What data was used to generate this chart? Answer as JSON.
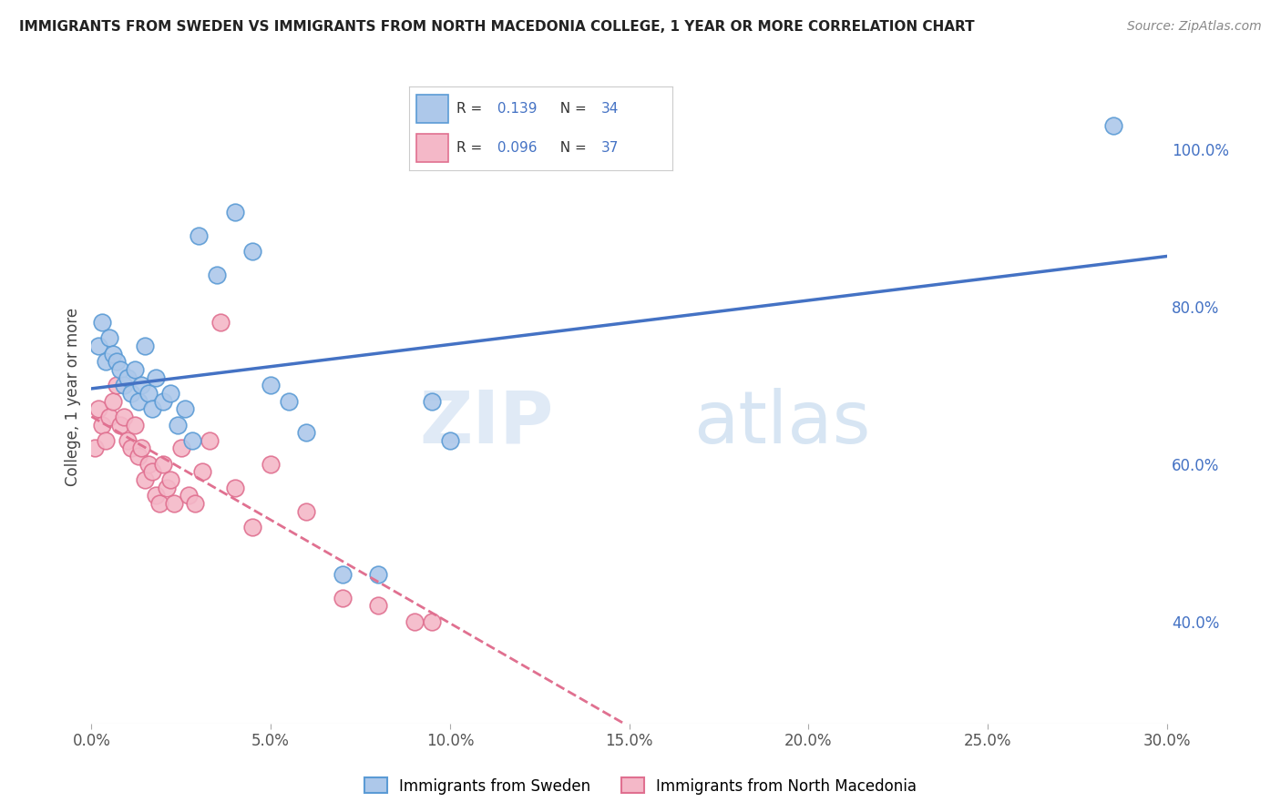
{
  "title": "IMMIGRANTS FROM SWEDEN VS IMMIGRANTS FROM NORTH MACEDONIA COLLEGE, 1 YEAR OR MORE CORRELATION CHART",
  "source": "Source: ZipAtlas.com",
  "ylabel": "College, 1 year or more",
  "x_tick_labels": [
    "0.0%",
    "5.0%",
    "10.0%",
    "15.0%",
    "20.0%",
    "25.0%",
    "30.0%"
  ],
  "x_tick_values": [
    0.0,
    5.0,
    10.0,
    15.0,
    20.0,
    25.0,
    30.0
  ],
  "y_tick_labels": [
    "40.0%",
    "60.0%",
    "80.0%",
    "100.0%"
  ],
  "y_tick_values": [
    40.0,
    60.0,
    80.0,
    100.0
  ],
  "xlim": [
    0.0,
    30.0
  ],
  "ylim": [
    27.0,
    110.0
  ],
  "legend_sweden_label": "Immigrants from Sweden",
  "legend_macedonia_label": "Immigrants from North Macedonia",
  "R_sweden": 0.139,
  "N_sweden": 34,
  "R_macedonia": 0.096,
  "N_macedonia": 37,
  "sweden_color": "#adc8ea",
  "sweden_edge_color": "#5b9bd5",
  "macedonia_color": "#f4b8c8",
  "macedonia_edge_color": "#e07090",
  "trend_sweden_color": "#4472c4",
  "trend_macedonia_color": "#e07090",
  "watermark_zip": "ZIP",
  "watermark_atlas": "atlas",
  "sweden_x": [
    0.2,
    0.3,
    0.4,
    0.5,
    0.6,
    0.7,
    0.8,
    0.9,
    1.0,
    1.1,
    1.2,
    1.3,
    1.4,
    1.5,
    1.6,
    1.7,
    1.8,
    2.0,
    2.2,
    2.4,
    2.6,
    2.8,
    3.0,
    3.5,
    4.0,
    4.5,
    5.0,
    5.5,
    6.0,
    7.0,
    8.0,
    9.5,
    10.0,
    28.5
  ],
  "sweden_y": [
    75.0,
    78.0,
    73.0,
    76.0,
    74.0,
    73.0,
    72.0,
    70.0,
    71.0,
    69.0,
    72.0,
    68.0,
    70.0,
    75.0,
    69.0,
    67.0,
    71.0,
    68.0,
    69.0,
    65.0,
    67.0,
    63.0,
    89.0,
    84.0,
    92.0,
    87.0,
    70.0,
    68.0,
    64.0,
    46.0,
    46.0,
    68.0,
    63.0,
    103.0
  ],
  "macedonia_x": [
    0.1,
    0.2,
    0.3,
    0.4,
    0.5,
    0.6,
    0.7,
    0.8,
    0.9,
    1.0,
    1.1,
    1.2,
    1.3,
    1.4,
    1.5,
    1.6,
    1.7,
    1.8,
    1.9,
    2.0,
    2.1,
    2.2,
    2.3,
    2.5,
    2.7,
    2.9,
    3.1,
    3.3,
    3.6,
    4.0,
    4.5,
    5.0,
    6.0,
    7.0,
    8.0,
    9.0,
    9.5
  ],
  "macedonia_y": [
    62.0,
    67.0,
    65.0,
    63.0,
    66.0,
    68.0,
    70.0,
    65.0,
    66.0,
    63.0,
    62.0,
    65.0,
    61.0,
    62.0,
    58.0,
    60.0,
    59.0,
    56.0,
    55.0,
    60.0,
    57.0,
    58.0,
    55.0,
    62.0,
    56.0,
    55.0,
    59.0,
    63.0,
    78.0,
    57.0,
    52.0,
    60.0,
    54.0,
    43.0,
    42.0,
    40.0,
    40.0
  ]
}
